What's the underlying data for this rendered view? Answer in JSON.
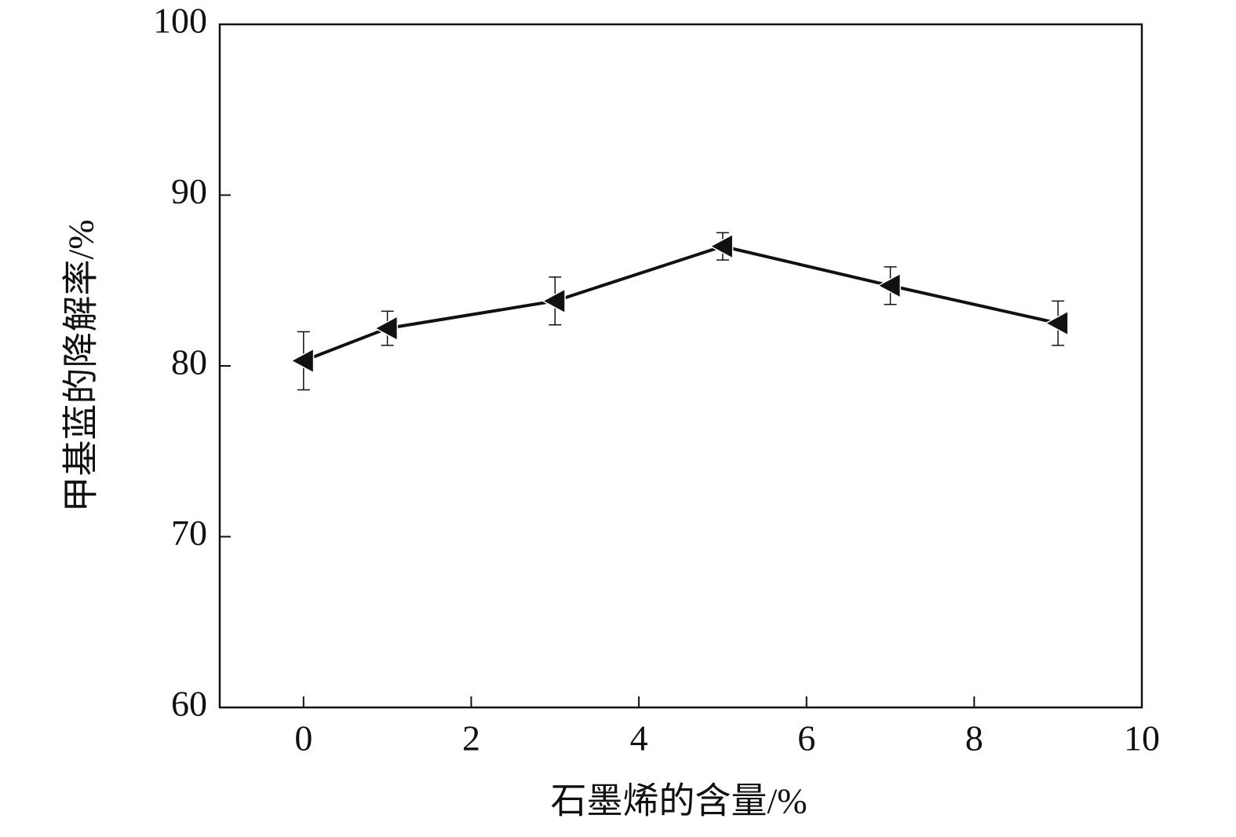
{
  "chart_data": {
    "type": "line",
    "x_label": "石墨烯的含量/%",
    "y_label": "甲基蓝的降解率/%",
    "x": [
      0,
      1,
      3,
      5,
      7,
      9
    ],
    "series": [
      {
        "color": "#111111",
        "marker": "triangle-left",
        "values": [
          80.3,
          82.2,
          83.8,
          87.0,
          84.7,
          82.5
        ],
        "errors": [
          1.7,
          1.0,
          1.4,
          0.8,
          1.1,
          1.3
        ]
      }
    ],
    "xlim": [
      -1,
      10
    ],
    "xticks": [
      0,
      2,
      4,
      6,
      8,
      10
    ],
    "ylim": [
      60,
      100
    ],
    "yticks": [
      60,
      70,
      80,
      90,
      100
    ],
    "grid": false
  }
}
